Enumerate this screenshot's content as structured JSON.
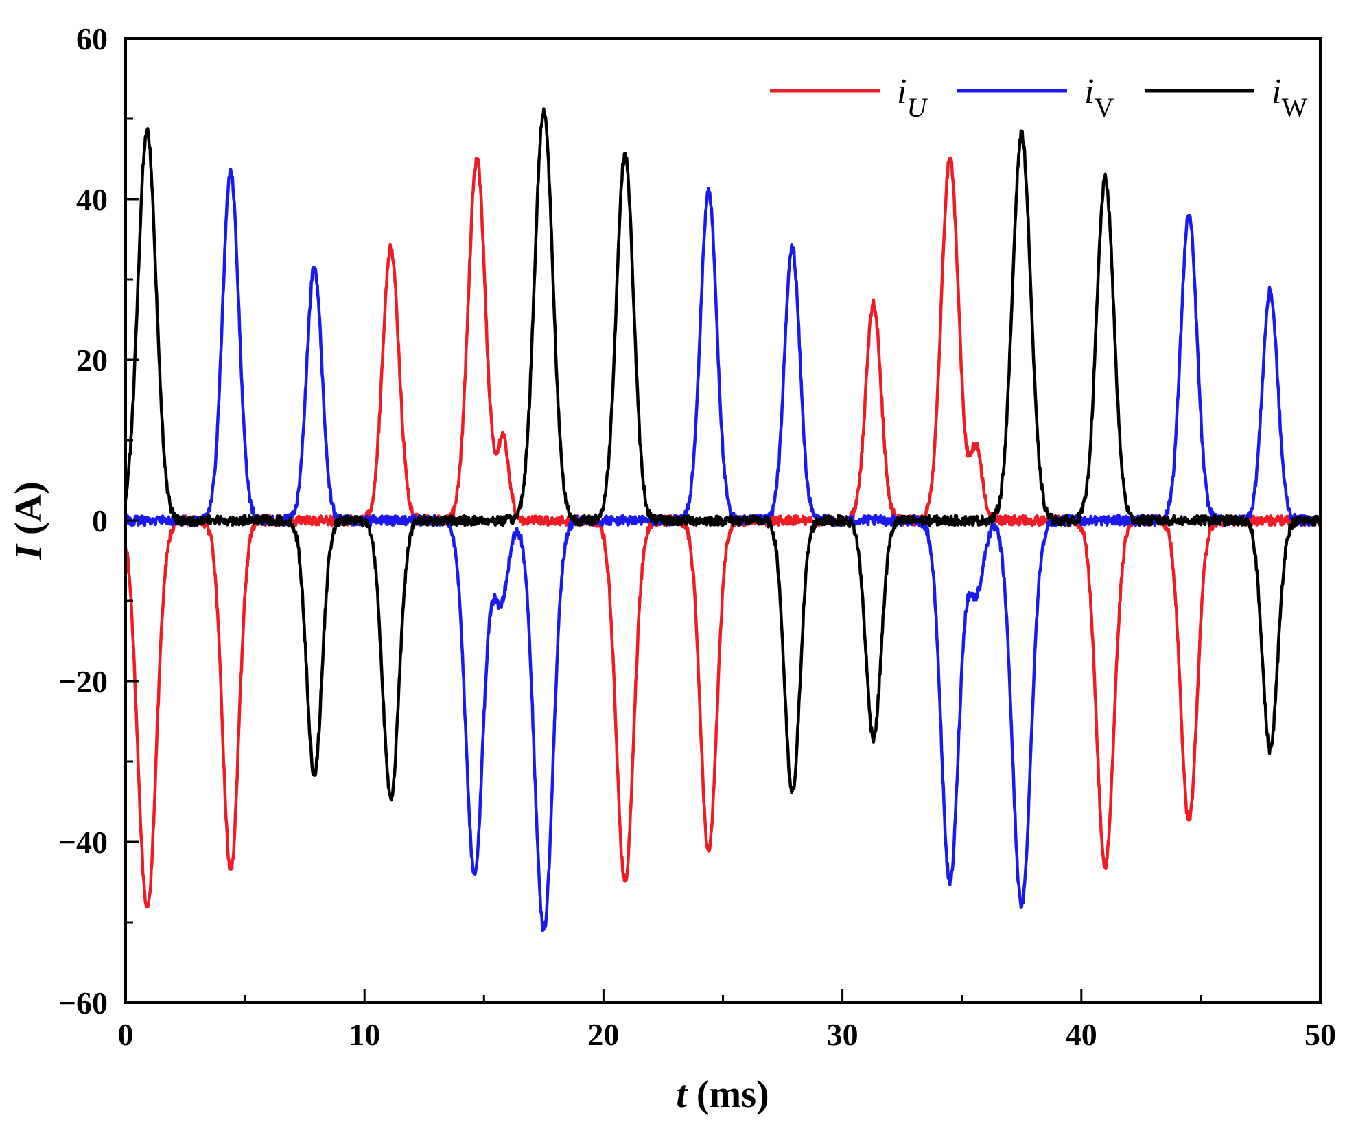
{
  "chart_data": {
    "type": "line",
    "title": "",
    "xlabel_var": "t",
    "xlabel_unit": " (ms)",
    "ylabel_var": "I",
    "ylabel_unit": " (A)",
    "xlim": [
      0,
      50
    ],
    "ylim": [
      -60,
      60
    ],
    "xticks": [
      0,
      10,
      20,
      30,
      40,
      50
    ],
    "xtick_labels": [
      "0",
      "10",
      "20",
      "30",
      "40",
      "50"
    ],
    "yticks": [
      60,
      40,
      20,
      0,
      -20,
      -40,
      -60
    ],
    "ytick_labels": [
      "60",
      "40",
      "20",
      "0",
      "−20",
      "−40",
      "−60"
    ],
    "legend_position": "top-right",
    "series": [
      {
        "name": "iU",
        "label_main": "i",
        "label_sub": "U",
        "sub_italic": true,
        "color": "#ee1c25",
        "pulses": [
          {
            "t": 0.9,
            "a": -48.5,
            "w": 0.38
          },
          {
            "t": 4.4,
            "a": -43.5,
            "w": 0.34
          },
          {
            "t": 11.1,
            "a": 34,
            "w": 0.34
          },
          {
            "t": 14.7,
            "a": 45,
            "w": 0.36
          },
          {
            "t": 15.8,
            "a": 10,
            "w": 0.25
          },
          {
            "t": 20.9,
            "a": -45,
            "w": 0.36
          },
          {
            "t": 24.4,
            "a": -41,
            "w": 0.34
          },
          {
            "t": 31.3,
            "a": 27,
            "w": 0.32
          },
          {
            "t": 34.5,
            "a": 45,
            "w": 0.36
          },
          {
            "t": 35.6,
            "a": 9,
            "w": 0.25
          },
          {
            "t": 41.0,
            "a": -43,
            "w": 0.36
          },
          {
            "t": 44.5,
            "a": -37.5,
            "w": 0.34
          }
        ]
      },
      {
        "name": "iV",
        "label_main": "i",
        "label_sub": "V",
        "sub_italic": false,
        "color": "#1a1aee",
        "pulses": [
          {
            "t": 4.4,
            "a": 43.5,
            "w": 0.34
          },
          {
            "t": 7.9,
            "a": 31.5,
            "w": 0.32
          },
          {
            "t": 14.6,
            "a": -44,
            "w": 0.36
          },
          {
            "t": 15.7,
            "a": -10,
            "w": 0.3
          },
          {
            "t": 17.5,
            "a": -51,
            "w": 0.38
          },
          {
            "t": 24.4,
            "a": 41,
            "w": 0.34
          },
          {
            "t": 27.9,
            "a": 34,
            "w": 0.32
          },
          {
            "t": 34.5,
            "a": -45,
            "w": 0.36
          },
          {
            "t": 35.6,
            "a": -9,
            "w": 0.3
          },
          {
            "t": 37.5,
            "a": -48,
            "w": 0.38
          },
          {
            "t": 44.5,
            "a": 38,
            "w": 0.34
          },
          {
            "t": 47.9,
            "a": 28.5,
            "w": 0.32
          }
        ]
      },
      {
        "name": "iW",
        "label_main": "i",
        "label_sub": "W",
        "sub_italic": false,
        "color": "#000000",
        "pulses": [
          {
            "t": 0.9,
            "a": 48.5,
            "w": 0.38
          },
          {
            "t": 7.9,
            "a": -31.5,
            "w": 0.32
          },
          {
            "t": 11.1,
            "a": -34.5,
            "w": 0.34
          },
          {
            "t": 17.5,
            "a": 51,
            "w": 0.38
          },
          {
            "t": 20.9,
            "a": 45.5,
            "w": 0.36
          },
          {
            "t": 27.9,
            "a": -34,
            "w": 0.32
          },
          {
            "t": 31.3,
            "a": -27,
            "w": 0.32
          },
          {
            "t": 37.5,
            "a": 48,
            "w": 0.38
          },
          {
            "t": 41.0,
            "a": 42.5,
            "w": 0.36
          },
          {
            "t": 47.9,
            "a": -28.5,
            "w": 0.32
          }
        ]
      }
    ]
  }
}
